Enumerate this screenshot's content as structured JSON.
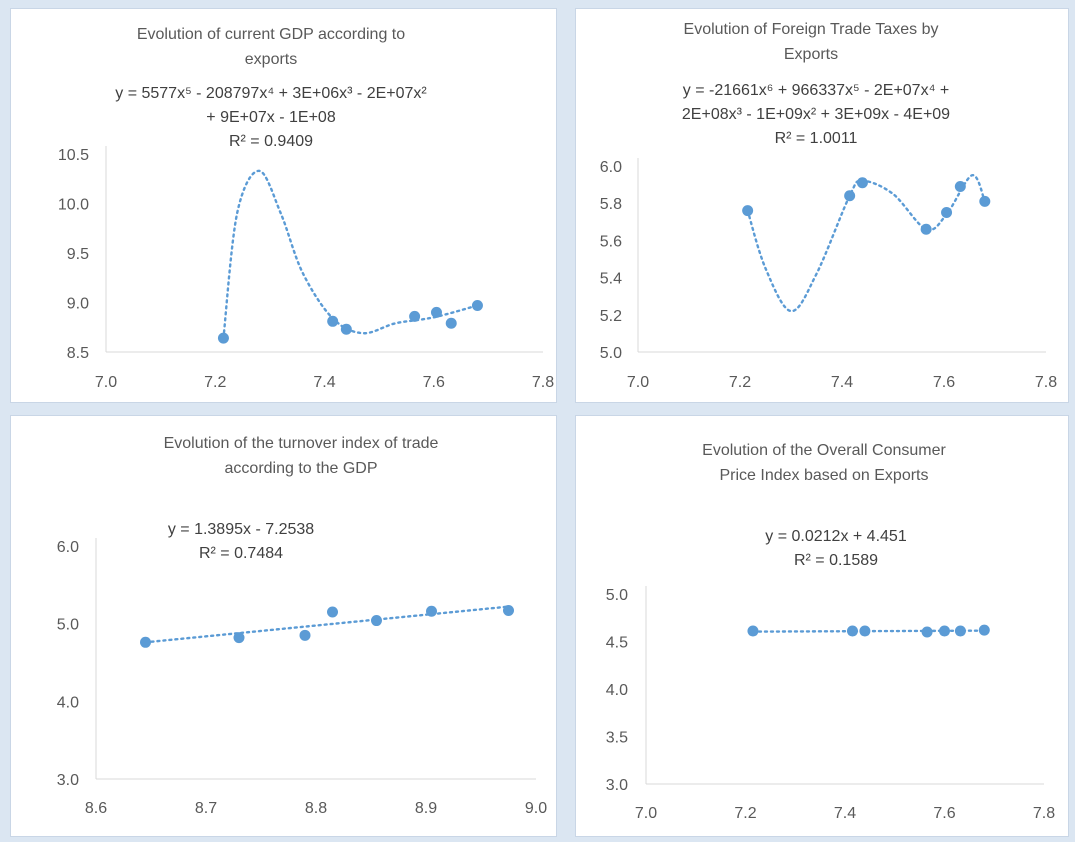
{
  "colors": {
    "series": "#5b9bd5",
    "title": "#595959",
    "equation": "#404040",
    "axis": "#d9d9d9"
  },
  "chart_data": [
    {
      "type": "scatter",
      "title_lines": [
        "Evolution of current GDP according to",
        "exports"
      ],
      "equation_lines": [
        "y = 5577x⁵ - 208797x⁴ + 3E+06x³ - 2E+07x²",
        "+ 9E+07x - 1E+08",
        "R² = 0.9409"
      ],
      "trendline": "polynomial-5",
      "xlim": [
        7.0,
        7.8
      ],
      "ylim": [
        8.5,
        10.5
      ],
      "x_ticks": [
        "7.0",
        "7.2",
        "7.4",
        "7.6",
        "7.8"
      ],
      "y_ticks": [
        "8.5",
        "9.0",
        "9.5",
        "10.0",
        "10.5"
      ],
      "points": [
        [
          7.215,
          8.64
        ],
        [
          7.415,
          8.81
        ],
        [
          7.44,
          8.73
        ],
        [
          7.565,
          8.86
        ],
        [
          7.605,
          8.9
        ],
        [
          7.632,
          8.79
        ],
        [
          7.68,
          8.97
        ]
      ],
      "trend_points": [
        [
          7.215,
          8.64
        ],
        [
          7.24,
          9.9
        ],
        [
          7.28,
          10.33
        ],
        [
          7.32,
          9.9
        ],
        [
          7.36,
          9.3
        ],
        [
          7.415,
          8.84
        ],
        [
          7.47,
          8.69
        ],
        [
          7.53,
          8.79
        ],
        [
          7.6,
          8.85
        ],
        [
          7.68,
          8.97
        ]
      ]
    },
    {
      "type": "scatter",
      "title_lines": [
        "Evolution of Foreign Trade Taxes by",
        "Exports"
      ],
      "equation_lines": [
        "y = -21661x⁶ + 966337x⁵ - 2E+07x⁴ +",
        "2E+08x³ - 1E+09x² + 3E+09x - 4E+09",
        "R² = 1.0011"
      ],
      "trendline": "polynomial-6",
      "xlim": [
        7.0,
        7.8
      ],
      "ylim": [
        5.0,
        6.0
      ],
      "x_ticks": [
        "7.0",
        "7.2",
        "7.4",
        "7.6",
        "7.8"
      ],
      "y_ticks": [
        "5.0",
        "5.2",
        "5.4",
        "5.6",
        "5.8",
        "6.0"
      ],
      "points": [
        [
          7.215,
          5.76
        ],
        [
          7.415,
          5.84
        ],
        [
          7.44,
          5.91
        ],
        [
          7.565,
          5.66
        ],
        [
          7.605,
          5.75
        ],
        [
          7.632,
          5.89
        ],
        [
          7.68,
          5.81
        ]
      ],
      "trend_points": [
        [
          7.215,
          5.76
        ],
        [
          7.25,
          5.45
        ],
        [
          7.3,
          5.22
        ],
        [
          7.35,
          5.42
        ],
        [
          7.415,
          5.84
        ],
        [
          7.44,
          5.92
        ],
        [
          7.5,
          5.85
        ],
        [
          7.565,
          5.66
        ],
        [
          7.605,
          5.74
        ],
        [
          7.655,
          5.95
        ],
        [
          7.68,
          5.81
        ]
      ]
    },
    {
      "type": "scatter",
      "title_lines": [
        "Evolution of the turnover index of trade",
        "according to the GDP"
      ],
      "equation_lines": [
        "y = 1.3895x - 7.2538",
        "R² = 0.7484"
      ],
      "trendline": "linear",
      "xlim": [
        8.6,
        9.0
      ],
      "ylim": [
        3.0,
        6.0
      ],
      "x_ticks": [
        "8.6",
        "8.7",
        "8.8",
        "8.9",
        "9.0"
      ],
      "y_ticks": [
        "3.0",
        "4.0",
        "5.0",
        "6.0"
      ],
      "points": [
        [
          8.645,
          4.76
        ],
        [
          8.73,
          4.82
        ],
        [
          8.79,
          4.85
        ],
        [
          8.815,
          5.15
        ],
        [
          8.855,
          5.04
        ],
        [
          8.905,
          5.16
        ],
        [
          8.975,
          5.17
        ]
      ],
      "trend_points": [
        [
          8.645,
          4.76
        ],
        [
          8.975,
          5.22
        ]
      ]
    },
    {
      "type": "scatter",
      "title_lines": [
        "Evolution of the Overall Consumer",
        "Price Index based on Exports"
      ],
      "equation_lines": [
        "y = 0.0212x + 4.451",
        "R² = 0.1589"
      ],
      "trendline": "linear",
      "xlim": [
        7.0,
        7.8
      ],
      "ylim": [
        3.0,
        5.0
      ],
      "x_ticks": [
        "7.0",
        "7.2",
        "7.4",
        "7.6",
        "7.8"
      ],
      "y_ticks": [
        "3.0",
        "3.5",
        "4.0",
        "4.5",
        "5.0"
      ],
      "points": [
        [
          7.215,
          4.61
        ],
        [
          7.415,
          4.61
        ],
        [
          7.44,
          4.61
        ],
        [
          7.565,
          4.6
        ],
        [
          7.6,
          4.61
        ],
        [
          7.632,
          4.61
        ],
        [
          7.68,
          4.62
        ]
      ],
      "trend_points": [
        [
          7.215,
          4.604
        ],
        [
          7.68,
          4.614
        ]
      ]
    }
  ]
}
